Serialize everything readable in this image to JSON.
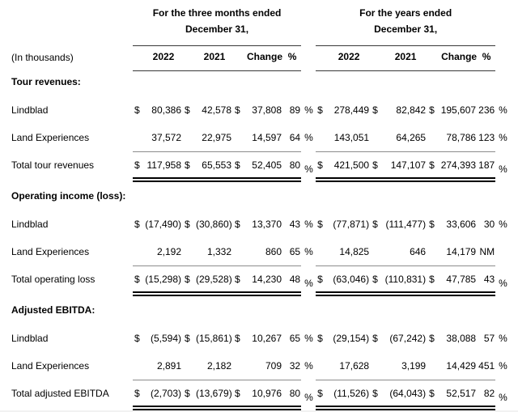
{
  "table": {
    "units_label": "(In thousands)",
    "column_groups": [
      {
        "title_line1": "For the three months ended",
        "title_line2": "December 31,",
        "headers": [
          "2022",
          "2021",
          "Change",
          "%"
        ]
      },
      {
        "title_line1": "For the years ended",
        "title_line2": "December 31,",
        "headers": [
          "2022",
          "2021",
          "Change",
          "%"
        ]
      }
    ],
    "sections": [
      {
        "heading": "Tour revenues:",
        "rows": [
          {
            "label": "Lindblad",
            "cells": [
              "$",
              "80,386",
              "$",
              "42,578",
              "$",
              "37,808",
              "89",
              "%",
              "$",
              "278,449",
              "$",
              "82,842",
              "$",
              "195,607",
              "236",
              "%"
            ]
          },
          {
            "label": "Land Experiences",
            "cells": [
              "",
              "37,572",
              "",
              "22,975",
              "",
              "14,597",
              "64",
              "%",
              "",
              "143,051",
              "",
              "64,265",
              "",
              "78,786",
              "123",
              "%"
            ]
          }
        ],
        "total": {
          "label": "Total tour revenues",
          "cells": [
            "$",
            "117,958",
            "$",
            "65,553",
            "$",
            "52,405",
            "80",
            "%",
            "$",
            "421,500",
            "$",
            "147,107",
            "$",
            "274,393",
            "187",
            "%"
          ]
        }
      },
      {
        "heading": "Operating income (loss):",
        "rows": [
          {
            "label": "Lindblad",
            "cells": [
              "$",
              "(17,490)",
              "$",
              "(30,860)",
              "$",
              "13,370",
              "43",
              "%",
              "$",
              "(77,871)",
              "$",
              "(111,477)",
              "$",
              "33,606",
              "30",
              "%"
            ]
          },
          {
            "label": "Land Experiences",
            "cells": [
              "",
              "2,192",
              "",
              "1,332",
              "",
              "860",
              "65",
              "%",
              "",
              "14,825",
              "",
              "646",
              "",
              "14,179",
              "NM",
              ""
            ]
          }
        ],
        "total": {
          "label": "Total operating loss",
          "cells": [
            "$",
            "(15,298)",
            "$",
            "(29,528)",
            "$",
            "14,230",
            "48",
            "%",
            "$",
            "(63,046)",
            "$",
            "(110,831)",
            "$",
            "47,785",
            "43",
            "%"
          ]
        }
      },
      {
        "heading": "Adjusted EBITDA:",
        "rows": [
          {
            "label": "Lindblad",
            "cells": [
              "$",
              "(5,594)",
              "$",
              "(15,861)",
              "$",
              "10,267",
              "65",
              "%",
              "$",
              "(29,154)",
              "$",
              "(67,242)",
              "$",
              "38,088",
              "57",
              "%"
            ]
          },
          {
            "label": "Land Experiences",
            "cells": [
              "",
              "2,891",
              "",
              "2,182",
              "",
              "709",
              "32",
              "%",
              "",
              "17,628",
              "",
              "3,199",
              "",
              "14,429",
              "451",
              "%"
            ]
          }
        ],
        "total": {
          "label": "Total adjusted EBITDA",
          "cells": [
            "$",
            "(2,703)",
            "$",
            "(13,679)",
            "$",
            "10,976",
            "80",
            "%",
            "$",
            "(11,526)",
            "$",
            "(64,043)",
            "$",
            "52,517",
            "82",
            "%"
          ]
        }
      }
    ],
    "colors": {
      "text": "#000000",
      "header_rule": "#383838",
      "total_rule": "#8c8c8c",
      "double_rule": "#000000",
      "background": "#ffffff"
    }
  }
}
